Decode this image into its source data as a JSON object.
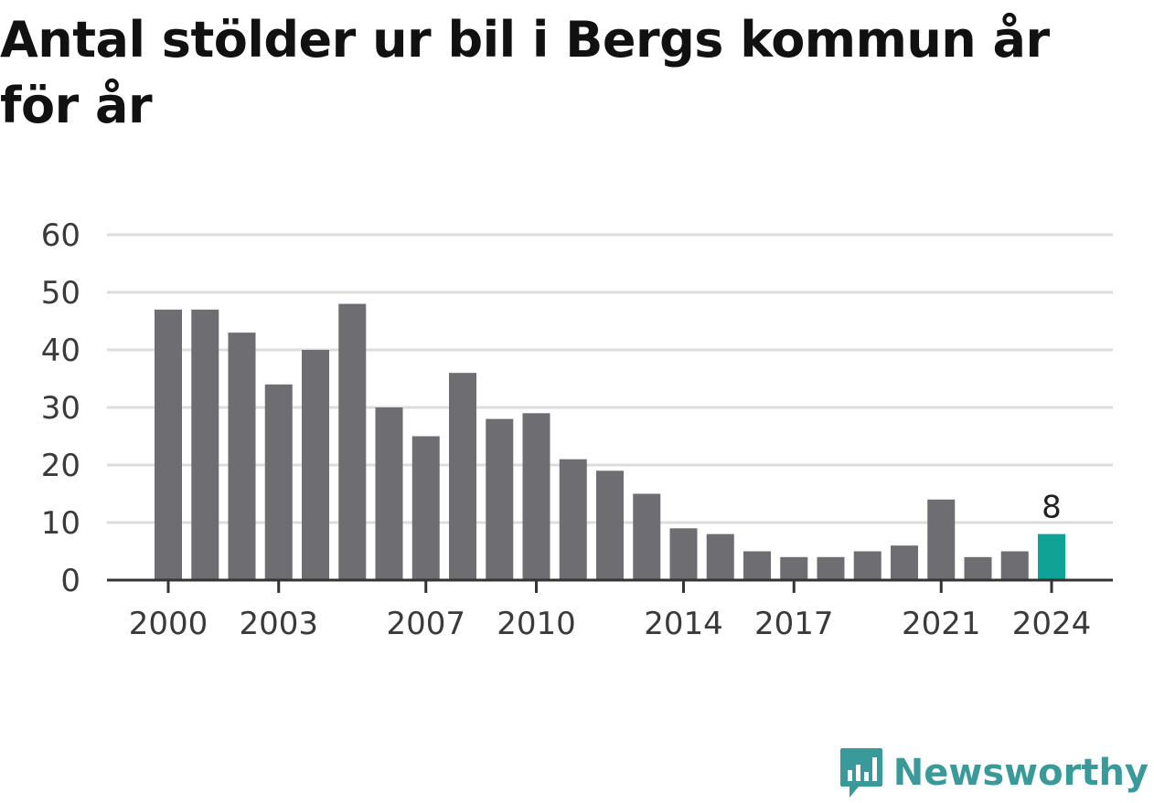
{
  "chart_data": {
    "type": "bar",
    "title": "Antal stölder ur bil i Bergs kommun år för år",
    "xlabel": "",
    "ylabel": "",
    "categories": [
      "2000",
      "2001",
      "2002",
      "2003",
      "2004",
      "2005",
      "2006",
      "2007",
      "2008",
      "2009",
      "2010",
      "2011",
      "2012",
      "2013",
      "2014",
      "2015",
      "2016",
      "2017",
      "2018",
      "2019",
      "2020",
      "2021",
      "2022",
      "2023",
      "2024"
    ],
    "values": [
      47,
      47,
      43,
      34,
      40,
      48,
      30,
      25,
      36,
      28,
      29,
      21,
      19,
      15,
      9,
      8,
      5,
      4,
      4,
      5,
      6,
      14,
      4,
      5,
      8
    ],
    "x_tick_labels": [
      "2000",
      "2003",
      "2007",
      "2010",
      "2014",
      "2017",
      "2021",
      "2024"
    ],
    "y_ticks": [
      0,
      10,
      20,
      30,
      40,
      50,
      60
    ],
    "ylim": [
      0,
      60
    ],
    "grid": true,
    "highlight": {
      "category": "2024",
      "label": "8"
    },
    "colors": {
      "bar": "#6e6d72",
      "highlight": "#0fa397",
      "grid": "#dcdcdc",
      "axis": "#333333"
    }
  },
  "brand": {
    "name": "Newsworthy",
    "icon": "newsworthy-logo-icon",
    "color": "#3a9a9a"
  }
}
